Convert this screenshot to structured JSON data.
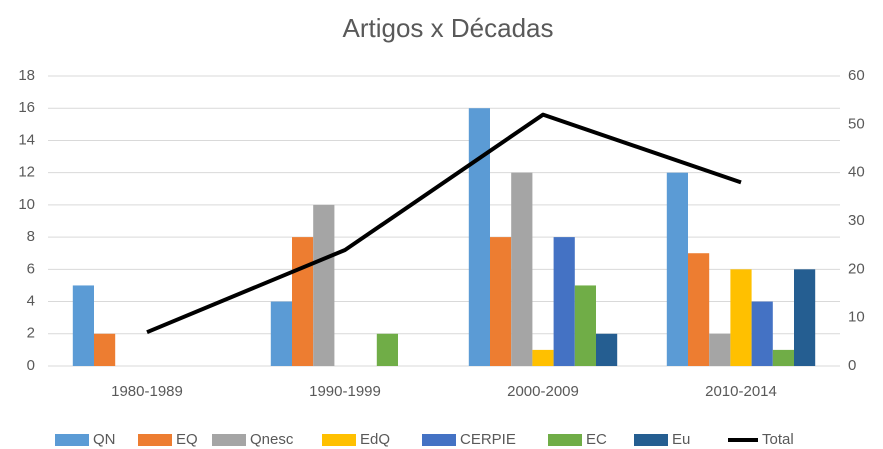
{
  "chart_data": {
    "type": "bar",
    "title": "Artigos x Décadas",
    "categories": [
      "1980-1989",
      "1990-1999",
      "2000-2009",
      "2010-2014"
    ],
    "series": [
      {
        "name": "QN",
        "color": "#5b9bd5",
        "values": [
          5,
          4,
          16,
          12
        ]
      },
      {
        "name": "EQ",
        "color": "#ed7d31",
        "values": [
          2,
          8,
          8,
          7
        ]
      },
      {
        "name": "Qnesc",
        "color": "#a5a5a5",
        "values": [
          0,
          10,
          12,
          2
        ]
      },
      {
        "name": "EdQ",
        "color": "#ffc000",
        "values": [
          0,
          0,
          1,
          6
        ]
      },
      {
        "name": "CERPIE",
        "color": "#4472c4",
        "values": [
          0,
          0,
          8,
          4
        ]
      },
      {
        "name": "EC",
        "color": "#70ad47",
        "values": [
          0,
          2,
          5,
          1
        ]
      },
      {
        "name": "Eu",
        "color": "#255e91",
        "values": [
          0,
          0,
          2,
          6
        ]
      },
      {
        "name": "Total",
        "color": "#000000",
        "type": "line",
        "axis": "y2",
        "values": [
          7,
          24,
          52,
          38
        ]
      }
    ],
    "ylim": [
      0,
      18
    ],
    "yticks": [
      0,
      2,
      4,
      6,
      8,
      10,
      12,
      14,
      16,
      18
    ],
    "y2lim": [
      0,
      60
    ],
    "y2ticks": [
      0,
      10,
      20,
      30,
      40,
      50,
      60
    ],
    "grid": true,
    "legend": "bottom"
  }
}
